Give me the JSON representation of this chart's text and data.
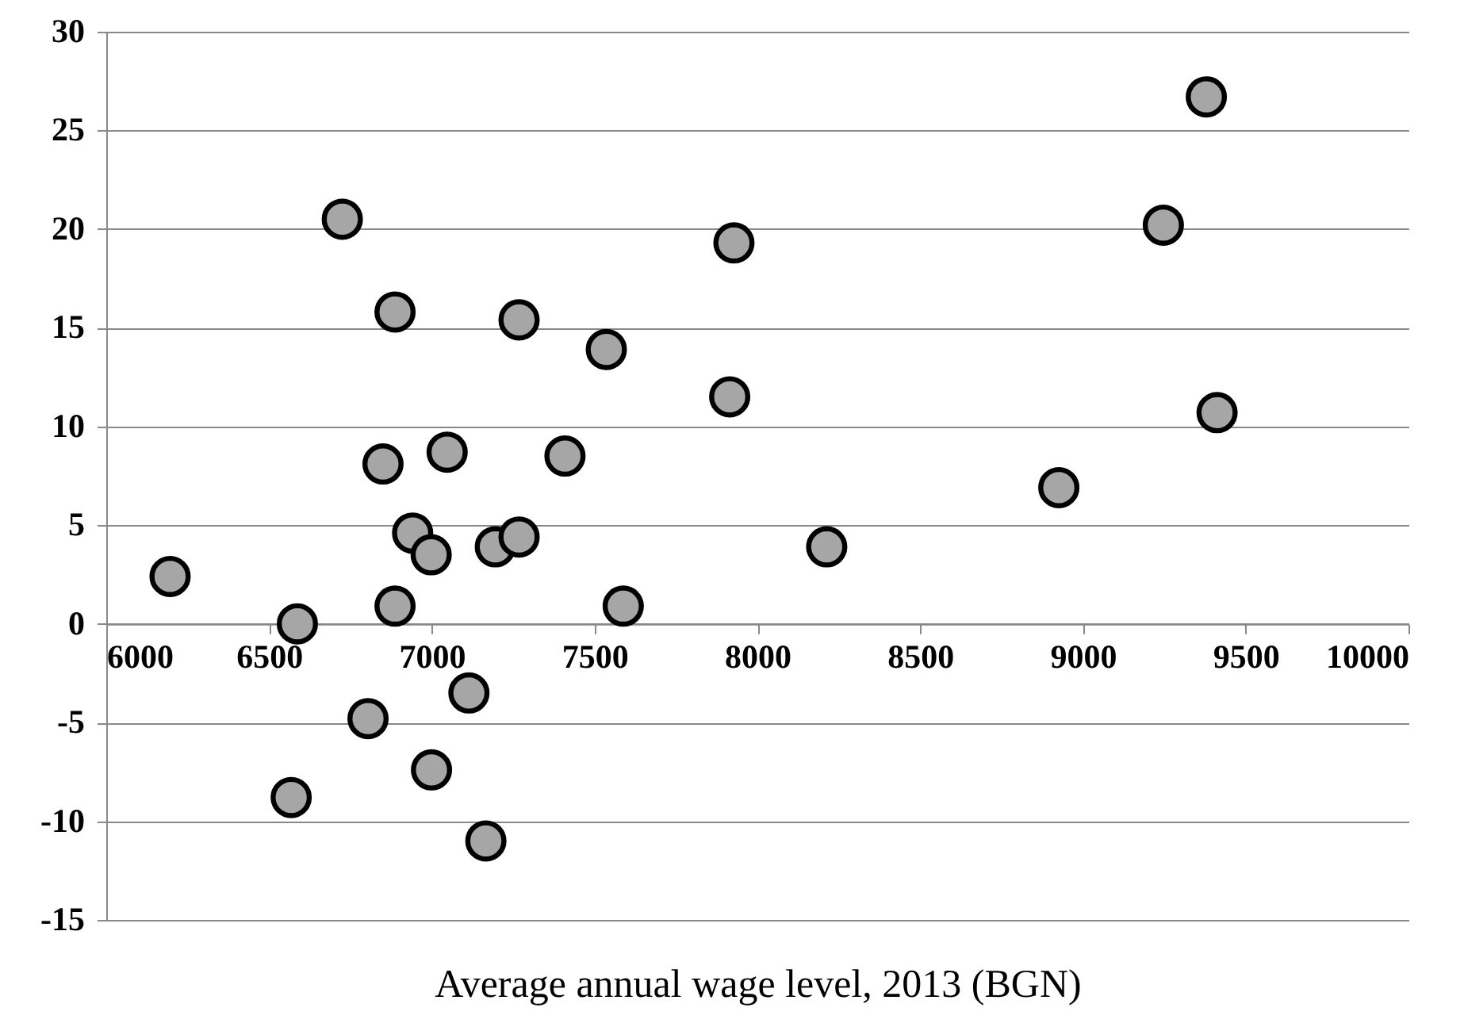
{
  "chart_data": {
    "type": "scatter",
    "xlabel": "Average annual wage level, 2013 (BGN)",
    "x": [
      6725,
      6887,
      7268,
      7536,
      7915,
      7928,
      6850,
      7047,
      7409,
      6196,
      6587,
      6941,
      6998,
      6887,
      7195,
      7268,
      7588,
      6804,
      7114,
      6999,
      6568,
      7166,
      9379,
      9247,
      9412,
      8926,
      8213
    ],
    "series": [
      {
        "color": "#a6a6a6",
        "values": [
          20.5,
          15.8,
          15.4,
          13.9,
          11.5,
          19.3,
          8.1,
          8.7,
          8.5,
          2.4,
          0,
          4.6,
          3.5,
          0.9,
          3.9,
          4.4,
          0.9,
          -4.8,
          -3.5,
          -7.4,
          -8.8,
          -11,
          26.7,
          20.2,
          10.7,
          6.9,
          3.9
        ]
      }
    ],
    "xlim": [
      6000,
      10000
    ],
    "xticks": [
      6000,
      6500,
      7000,
      7500,
      8000,
      8500,
      9000,
      9500,
      10000
    ],
    "ylim": [
      -15,
      30
    ],
    "yticks": [
      -15,
      -10,
      -5,
      0,
      5,
      10,
      15,
      20,
      25,
      30
    ],
    "grid": "y",
    "marker": "circle"
  }
}
